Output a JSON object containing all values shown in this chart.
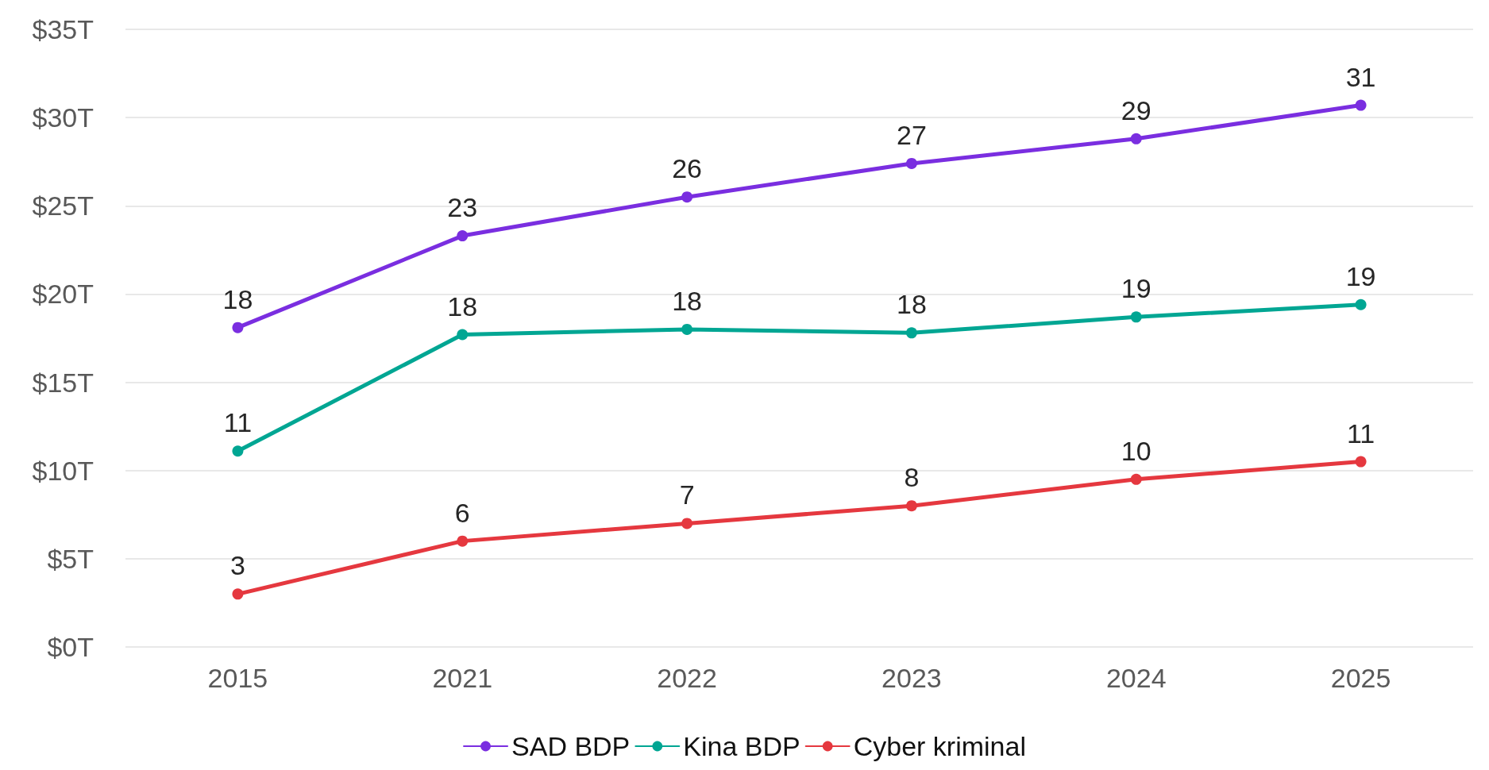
{
  "chart_data": {
    "type": "line",
    "categories": [
      "2015",
      "2021",
      "2022",
      "2023",
      "2024",
      "2025"
    ],
    "series": [
      {
        "name": "SAD BDP",
        "color": "#7a2ee0",
        "values": [
          18.1,
          23.3,
          25.5,
          27.4,
          28.8,
          30.7
        ],
        "value_labels": [
          "18",
          "23",
          "26",
          "27",
          "29",
          "31"
        ]
      },
      {
        "name": "Kina BDP",
        "color": "#00a693",
        "values": [
          11.1,
          17.7,
          18.0,
          17.8,
          18.7,
          19.4
        ],
        "value_labels": [
          "11",
          "18",
          "18",
          "18",
          "19",
          "19"
        ]
      },
      {
        "name": "Cyber kriminal",
        "color": "#e5383f",
        "values": [
          3.0,
          6.0,
          7.0,
          8.0,
          9.5,
          10.5
        ],
        "value_labels": [
          "3",
          "6",
          "7",
          "8",
          "10",
          "11"
        ]
      }
    ],
    "ylim": [
      0,
      35
    ],
    "yticks": [
      {
        "value": 0,
        "label": "$0T"
      },
      {
        "value": 5,
        "label": "$5T"
      },
      {
        "value": 10,
        "label": "$10T"
      },
      {
        "value": 15,
        "label": "$15T"
      },
      {
        "value": 20,
        "label": "$20T"
      },
      {
        "value": 25,
        "label": "$25T"
      },
      {
        "value": 30,
        "label": "$30T"
      },
      {
        "value": 35,
        "label": "$35T"
      }
    ],
    "grid": "y",
    "legend": "bottom",
    "marker": "circle",
    "line_style": "solid"
  }
}
